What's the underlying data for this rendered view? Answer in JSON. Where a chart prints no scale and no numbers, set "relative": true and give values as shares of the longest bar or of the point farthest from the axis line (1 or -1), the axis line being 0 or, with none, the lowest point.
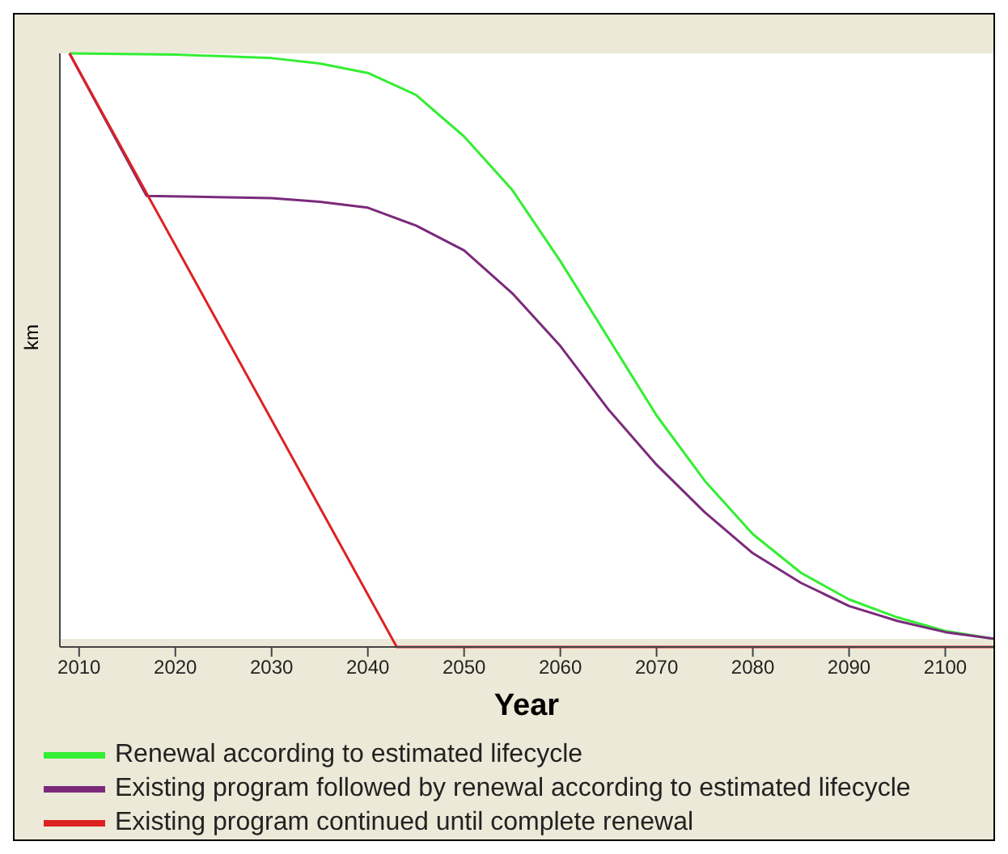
{
  "chart_data": {
    "type": "line",
    "relative": true,
    "xlabel": "Year",
    "ylabel": "km",
    "xlim": [
      2008,
      2105
    ],
    "xticks": [
      2010,
      2020,
      2030,
      2040,
      2050,
      2060,
      2070,
      2080,
      2090,
      2100
    ],
    "legend": "bottom",
    "marker": "none",
    "series": [
      {
        "name": "Renewal according to estimated lifecycle",
        "color": "#33ee33",
        "x": [
          2009,
          2020,
          2030,
          2035,
          2040,
          2045,
          2050,
          2055,
          2060,
          2065,
          2070,
          2075,
          2080,
          2085,
          2090,
          2095,
          2100,
          2105
        ],
        "values": [
          1,
          0.998,
          0.992,
          0.983,
          0.967,
          0.93,
          0.86,
          0.77,
          0.65,
          0.52,
          0.39,
          0.28,
          0.19,
          0.125,
          0.08,
          0.05,
          0.027,
          0.014
        ]
      },
      {
        "name": "Existing program followed by renewal according to estimated lifecycle",
        "color": "#7b2a7b",
        "x": [
          2009,
          2017,
          2030,
          2035,
          2040,
          2045,
          2050,
          2055,
          2060,
          2065,
          2070,
          2075,
          2080,
          2085,
          2090,
          2095,
          2100,
          2105
        ],
        "values": [
          1,
          0.76,
          0.756,
          0.75,
          0.74,
          0.71,
          0.668,
          0.596,
          0.507,
          0.4,
          0.307,
          0.227,
          0.158,
          0.108,
          0.069,
          0.044,
          0.025,
          0.014
        ]
      },
      {
        "name": "Existing program continued until complete renewal",
        "color": "#dd2222",
        "x": [
          2009,
          2043,
          2105
        ],
        "values": [
          1,
          0,
          0
        ]
      }
    ]
  }
}
